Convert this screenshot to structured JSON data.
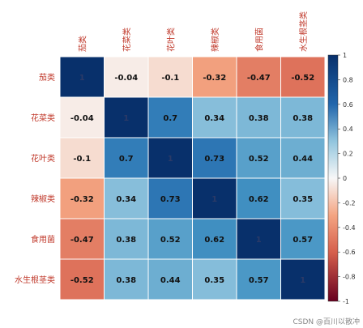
{
  "chart_data": {
    "type": "heatmap",
    "categories": [
      "茄类",
      "花菜类",
      "花叶类",
      "辣椒类",
      "食用菌",
      "水生根茎类"
    ],
    "values": [
      [
        1,
        -0.04,
        -0.1,
        -0.32,
        -0.47,
        -0.52
      ],
      [
        -0.04,
        1,
        0.7,
        0.34,
        0.38,
        0.38
      ],
      [
        -0.1,
        0.7,
        1,
        0.73,
        0.52,
        0.44
      ],
      [
        -0.32,
        0.34,
        0.73,
        1,
        0.62,
        0.35
      ],
      [
        -0.47,
        0.38,
        0.52,
        0.62,
        1,
        0.57
      ],
      [
        -0.52,
        0.38,
        0.44,
        0.35,
        0.57,
        1
      ]
    ],
    "value_labels": [
      [
        "1",
        "-0.04",
        "-0.1",
        "-0.32",
        "-0.47",
        "-0.52"
      ],
      [
        "-0.04",
        "1",
        "0.7",
        "0.34",
        "0.38",
        "0.38"
      ],
      [
        "-0.1",
        "0.7",
        "1",
        "0.73",
        "0.52",
        "0.44"
      ],
      [
        "-0.32",
        "0.34",
        "0.73",
        "1",
        "0.62",
        "0.35"
      ],
      [
        "-0.47",
        "0.38",
        "0.52",
        "0.62",
        "1",
        "0.57"
      ],
      [
        "-0.52",
        "0.38",
        "0.44",
        "0.35",
        "0.57",
        "1"
      ]
    ],
    "colorbar": {
      "range": [
        -1,
        1
      ],
      "ticks": [
        "1",
        "0.8",
        "0.6",
        "0.4",
        "0.2",
        "0",
        "-0.2",
        "-0.4",
        "-0.6",
        "-0.8",
        "-1"
      ],
      "colormap": "RdBu"
    },
    "label_color": "#c0392b"
  },
  "watermark": "CSDN @百川以散冲"
}
